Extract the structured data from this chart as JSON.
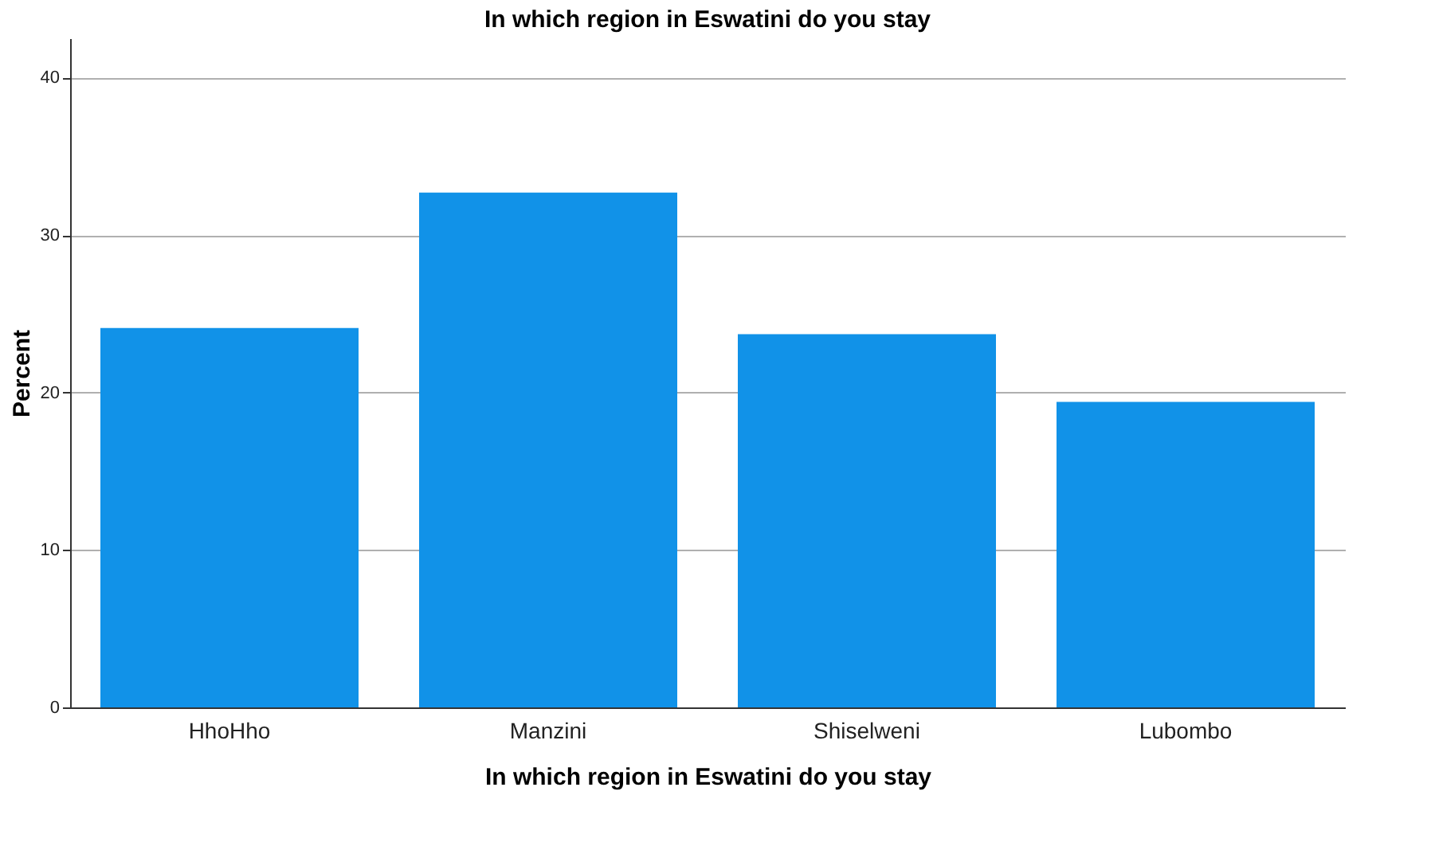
{
  "chart_data": {
    "type": "bar",
    "title": "In which region in Eswatini do you stay",
    "xlabel": "In which region in Eswatini do you stay",
    "ylabel": "Percent",
    "categories": [
      "HhoHho",
      "Manzini",
      "Shiselweni",
      "Lubombo"
    ],
    "values": [
      24.1,
      32.7,
      23.7,
      19.4
    ],
    "color": "#1192e8",
    "ylim": [
      0,
      42.5
    ],
    "yticks": [
      0,
      10,
      20,
      30,
      40
    ],
    "grid": "y"
  }
}
